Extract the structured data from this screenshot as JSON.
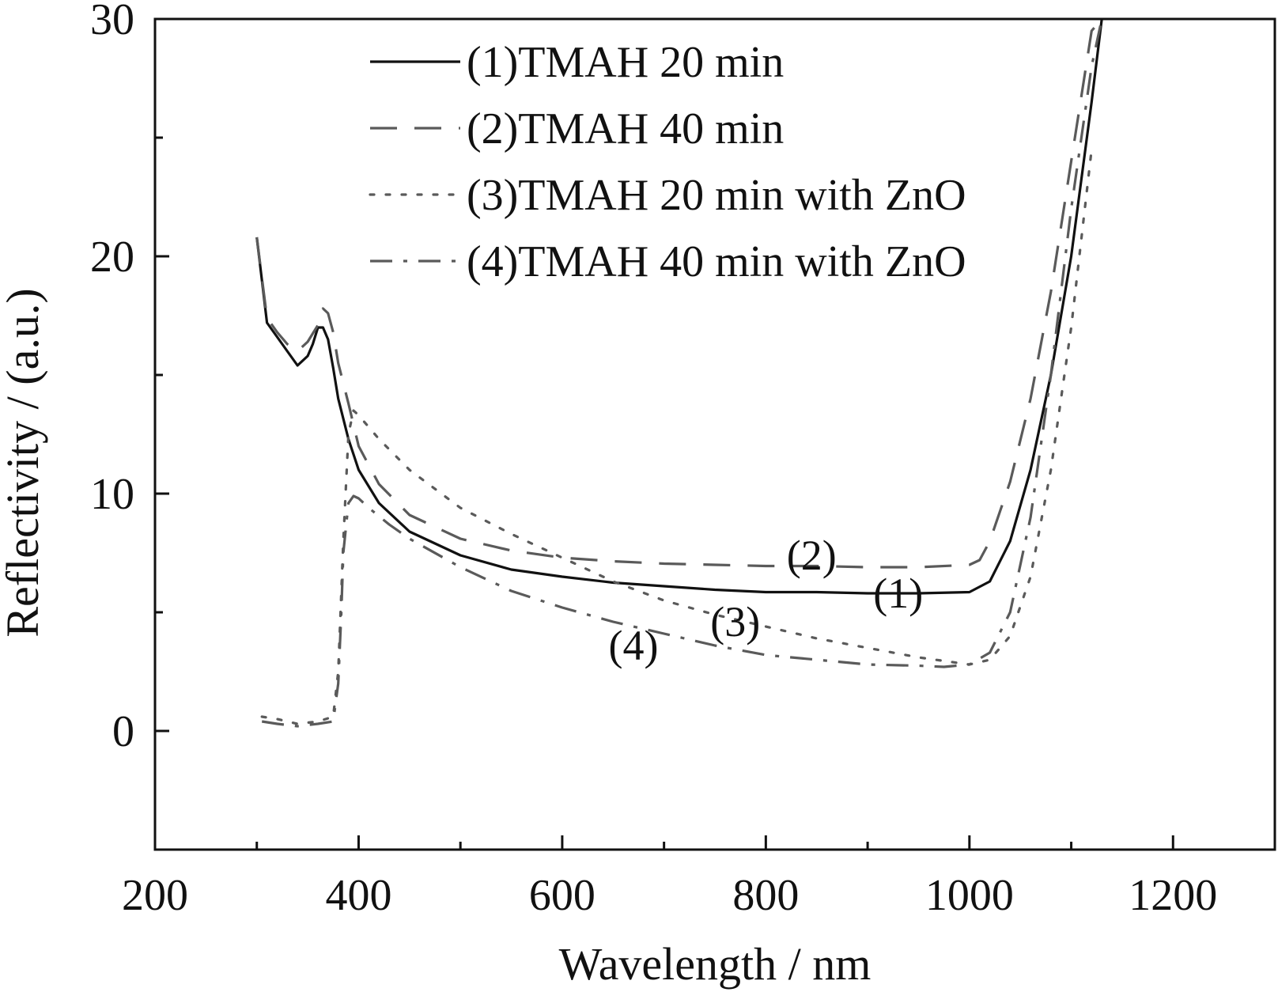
{
  "chart_data": {
    "type": "line",
    "title": "",
    "xlabel": "Wavelength / nm",
    "ylabel": "Reflectivity / (a.u.)",
    "xlim": [
      200,
      1300
    ],
    "ylim": [
      -5,
      30
    ],
    "xticks": [
      200,
      400,
      600,
      800,
      1000,
      1200
    ],
    "yticks": [
      0,
      10,
      20,
      30
    ],
    "grid": false,
    "legend_placement": "top-center",
    "series": [
      {
        "name": "(1)TMAH 20 min",
        "annotation": "(1)",
        "annotation_at": [
          930,
          5.8
        ],
        "style": "solid",
        "color": "#111111",
        "x": [
          300,
          310,
          320,
          330,
          340,
          350,
          355,
          360,
          365,
          370,
          375,
          380,
          390,
          400,
          420,
          450,
          500,
          550,
          600,
          650,
          700,
          750,
          800,
          850,
          900,
          950,
          1000,
          1020,
          1040,
          1060,
          1080,
          1100,
          1120,
          1130
        ],
        "y": [
          20.8,
          17.2,
          16.6,
          16.0,
          15.4,
          15.8,
          16.3,
          17.0,
          17.0,
          16.5,
          15.3,
          14.0,
          12.3,
          11.0,
          9.6,
          8.4,
          7.4,
          6.8,
          6.5,
          6.25,
          6.1,
          5.95,
          5.85,
          5.85,
          5.8,
          5.8,
          5.85,
          6.3,
          8.0,
          11.0,
          15.0,
          20.0,
          26.5,
          30.0
        ]
      },
      {
        "name": "(2)TMAH 40 min",
        "annotation": "(2)",
        "annotation_at": [
          845,
          7.4
        ],
        "style": "dashed",
        "color": "#5a5a5a",
        "x": [
          300,
          310,
          320,
          330,
          340,
          350,
          360,
          365,
          370,
          375,
          380,
          390,
          400,
          420,
          450,
          500,
          550,
          600,
          650,
          700,
          750,
          800,
          850,
          900,
          950,
          1000,
          1010,
          1020,
          1040,
          1060,
          1080,
          1100,
          1120,
          1130
        ],
        "y": [
          20.8,
          17.4,
          16.8,
          16.3,
          16.0,
          16.4,
          17.1,
          17.8,
          17.6,
          16.8,
          15.5,
          13.8,
          12.0,
          10.4,
          9.1,
          8.1,
          7.6,
          7.3,
          7.15,
          7.05,
          7.0,
          6.95,
          6.95,
          6.9,
          6.9,
          7.0,
          7.2,
          8.0,
          10.5,
          14.0,
          18.5,
          24.0,
          29.5,
          30.0
        ]
      },
      {
        "name": "(3)TMAH 20 min with ZnO",
        "annotation": "(3)",
        "annotation_at": [
          770,
          4.6
        ],
        "style": "dotted",
        "color": "#5a5a5a",
        "x": [
          305,
          320,
          340,
          360,
          375,
          380,
          385,
          390,
          395,
          400,
          420,
          450,
          500,
          550,
          600,
          650,
          700,
          750,
          800,
          850,
          900,
          950,
          1000,
          1020,
          1040,
          1060,
          1080,
          1100,
          1120
        ],
        "y": [
          0.6,
          0.5,
          0.3,
          0.4,
          0.6,
          2.5,
          8.0,
          12.5,
          13.5,
          13.3,
          12.3,
          11.0,
          9.4,
          8.3,
          7.3,
          6.3,
          5.5,
          4.9,
          4.4,
          3.9,
          3.5,
          3.1,
          2.8,
          3.0,
          4.0,
          6.5,
          11.0,
          17.0,
          24.5
        ]
      },
      {
        "name": "(4)TMAH 40 min with ZnO",
        "annotation": "(4)",
        "annotation_at": [
          670,
          3.6
        ],
        "style": "dash-dot",
        "color": "#5a5a5a",
        "x": [
          305,
          320,
          340,
          360,
          375,
          380,
          383,
          385,
          390,
          395,
          400,
          410,
          430,
          450,
          500,
          550,
          600,
          650,
          700,
          750,
          800,
          850,
          900,
          950,
          975,
          1000,
          1020,
          1040,
          1060,
          1080,
          1100,
          1120,
          1130
        ],
        "y": [
          0.4,
          0.3,
          0.2,
          0.3,
          0.4,
          2.0,
          5.0,
          7.5,
          9.6,
          9.9,
          9.8,
          9.4,
          8.7,
          8.1,
          6.9,
          5.9,
          5.2,
          4.6,
          4.1,
          3.6,
          3.2,
          3.0,
          2.8,
          2.75,
          2.7,
          2.8,
          3.3,
          5.0,
          9.0,
          15.0,
          22.0,
          28.0,
          30.0
        ]
      }
    ]
  }
}
